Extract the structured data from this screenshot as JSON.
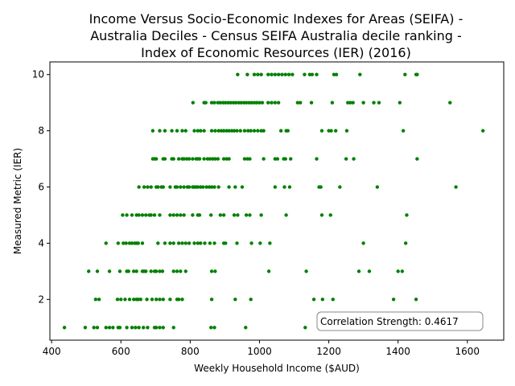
{
  "chart_data": {
    "type": "scatter",
    "title_lines": [
      "Income Versus Socio-Economic Indexes for Areas (SEIFA) -",
      "Australia Deciles - Census SEIFA Australia decile ranking -",
      "Index of Economic Resources (IER) (2016)"
    ],
    "xlabel": "Weekly Household Income ($AUD)",
    "ylabel": "Measured Metric (IER)",
    "xlim": [
      395,
      1705
    ],
    "ylim": [
      0.55,
      10.45
    ],
    "x_ticks": [
      400,
      600,
      800,
      1000,
      1200,
      1400,
      1600
    ],
    "y_ticks": [
      2,
      4,
      6,
      8,
      10
    ],
    "grid": false,
    "point_color": "#008000",
    "annotation": "Correlation Strength: 0.4617",
    "points": [
      {
        "y": 10,
        "x": [
          937,
          965,
          985,
          995,
          1005,
          1025,
          1035,
          1045,
          1055,
          1065,
          1075,
          1085,
          1095,
          1130,
          1145,
          1152,
          1165,
          1215,
          1222,
          1290,
          1420,
          1452,
          1455
        ]
      },
      {
        "y": 9,
        "x": [
          808,
          840,
          845,
          862,
          870,
          880,
          887,
          895,
          902,
          910,
          917,
          925,
          932,
          940,
          947,
          955,
          962,
          970,
          977,
          985,
          992,
          1000,
          1008,
          1025,
          1035,
          1045,
          1055,
          1110,
          1118,
          1150,
          1210,
          1255,
          1262,
          1270,
          1300,
          1330,
          1345,
          1405,
          1550
        ]
      },
      {
        "y": 8,
        "x": [
          692,
          712,
          727,
          747,
          762,
          777,
          787,
          812,
          822,
          830,
          840,
          862,
          872,
          882,
          890,
          897,
          905,
          912,
          920,
          927,
          935,
          945,
          957,
          967,
          975,
          985,
          995,
          1005,
          1012,
          1062,
          1077,
          1082,
          1180,
          1200,
          1207,
          1220,
          1252,
          1415,
          1645
        ]
      },
      {
        "y": 7,
        "x": [
          692,
          697,
          702,
          722,
          727,
          747,
          752,
          767,
          777,
          782,
          790,
          797,
          807,
          817,
          822,
          827,
          840,
          850,
          857,
          865,
          872,
          880,
          897,
          905,
          912,
          957,
          965,
          972,
          1012,
          1045,
          1052,
          1070,
          1075,
          1090,
          1165,
          1250,
          1272,
          1455
        ]
      },
      {
        "y": 6,
        "x": [
          652,
          667,
          677,
          687,
          702,
          707,
          717,
          722,
          742,
          757,
          762,
          772,
          782,
          792,
          797,
          807,
          812,
          817,
          822,
          830,
          837,
          847,
          855,
          862,
          870,
          882,
          912,
          930,
          950,
          1045,
          1072,
          1087,
          1172,
          1177,
          1232,
          1340,
          1567
        ]
      },
      {
        "y": 5,
        "x": [
          605,
          617,
          632,
          645,
          652,
          662,
          672,
          682,
          687,
          697,
          712,
          742,
          752,
          762,
          772,
          782,
          807,
          822,
          827,
          860,
          887,
          897,
          927,
          937,
          962,
          972,
          1005,
          1077,
          1180,
          1205,
          1425
        ]
      },
      {
        "y": 4,
        "x": [
          557,
          592,
          607,
          615,
          625,
          632,
          640,
          645,
          650,
          662,
          707,
          727,
          742,
          752,
          767,
          777,
          787,
          797,
          812,
          822,
          830,
          842,
          857,
          870,
          897,
          902,
          935,
          977,
          1002,
          1030,
          1300,
          1422
        ]
      },
      {
        "y": 3,
        "x": [
          507,
          532,
          567,
          597,
          617,
          622,
          637,
          645,
          662,
          667,
          672,
          687,
          697,
          702,
          712,
          720,
          752,
          762,
          772,
          787,
          862,
          872,
          1027,
          1135,
          1287,
          1317,
          1400,
          1412
        ]
      },
      {
        "y": 2,
        "x": [
          527,
          537,
          590,
          600,
          612,
          625,
          637,
          645,
          650,
          657,
          675,
          690,
          702,
          712,
          722,
          742,
          762,
          767,
          777,
          862,
          930,
          975,
          1157,
          1182,
          1212,
          1387,
          1452
        ]
      },
      {
        "y": 1,
        "x": [
          437,
          497,
          522,
          532,
          557,
          567,
          577,
          592,
          597,
          617,
          632,
          642,
          652,
          665,
          677,
          697,
          702,
          712,
          722,
          752,
          860,
          870,
          960,
          1132,
          1215,
          1265,
          1295,
          1345,
          1385
        ]
      }
    ]
  }
}
